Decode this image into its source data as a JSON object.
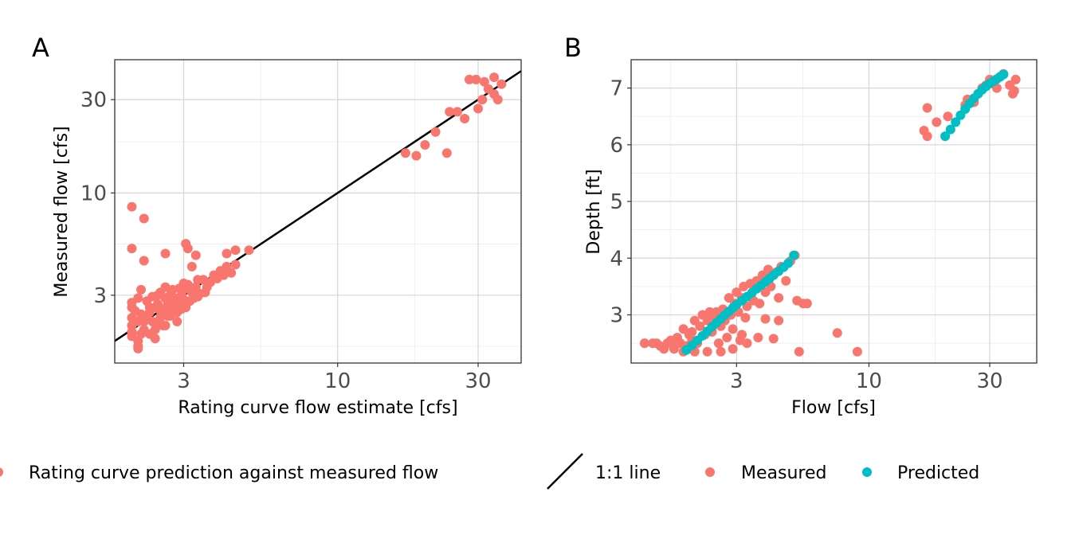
{
  "colors": {
    "measured": "#F8766D",
    "predicted": "#00BFC4",
    "line": "#000000"
  },
  "chart_data": [
    {
      "id": "A",
      "panel_label": "A",
      "type": "scatter",
      "xlabel": "Rating curve flow estimate [cfs]",
      "ylabel": "Measured flow [cfs]",
      "xscale": "log",
      "yscale": "log",
      "xlim": [
        1.75,
        42
      ],
      "ylim": [
        1.35,
        48
      ],
      "xticks": [
        3,
        10,
        30
      ],
      "yticks": [
        3,
        10,
        30
      ],
      "xticklabels": [
        "3",
        "10",
        "30"
      ],
      "yticklabels": [
        "3",
        "10",
        "30"
      ],
      "grid": true,
      "series": [
        {
          "name": "Rating curve prediction against measured flow",
          "color": "#F8766D",
          "points": [
            [
              2.0,
              8.5
            ],
            [
              2.0,
              5.2
            ],
            [
              2.2,
              7.4
            ],
            [
              2.2,
              4.5
            ],
            [
              2.6,
              4.9
            ],
            [
              3.05,
              5.5
            ],
            [
              3.1,
              5.2
            ],
            [
              3.3,
              4.8
            ],
            [
              4.2,
              4.9
            ],
            [
              4.5,
              5.1
            ],
            [
              5.0,
              5.1
            ],
            [
              2.0,
              2.6
            ],
            [
              2.0,
              2.3
            ],
            [
              2.0,
              2.1
            ],
            [
              2.0,
              1.95
            ],
            [
              2.0,
              1.85
            ],
            [
              2.1,
              1.75
            ],
            [
              2.1,
              1.65
            ],
            [
              2.1,
              1.6
            ],
            [
              2.15,
              2.4
            ],
            [
              2.15,
              3.2
            ],
            [
              2.1,
              2.9
            ],
            [
              2.2,
              2.2
            ],
            [
              2.2,
              2.0
            ],
            [
              2.25,
              2.8
            ],
            [
              2.3,
              2.6
            ],
            [
              2.3,
              2.45
            ],
            [
              2.35,
              2.2
            ],
            [
              2.4,
              2.0
            ],
            [
              2.4,
              1.8
            ],
            [
              2.45,
              3.0
            ],
            [
              2.45,
              2.7
            ],
            [
              2.5,
              2.5
            ],
            [
              2.5,
              2.3
            ],
            [
              2.55,
              2.1
            ],
            [
              2.6,
              3.3
            ],
            [
              2.6,
              2.9
            ],
            [
              2.65,
              2.7
            ],
            [
              2.7,
              2.5
            ],
            [
              2.7,
              2.35
            ],
            [
              2.75,
              3.2
            ],
            [
              2.8,
              2.9
            ],
            [
              2.8,
              2.6
            ],
            [
              2.85,
              2.45
            ],
            [
              2.9,
              2.7
            ],
            [
              2.95,
              3.0
            ],
            [
              3.0,
              3.2
            ],
            [
              3.0,
              2.85
            ],
            [
              3.05,
              2.6
            ],
            [
              3.1,
              3.4
            ],
            [
              3.2,
              3.1
            ],
            [
              3.25,
              2.9
            ],
            [
              3.3,
              3.3
            ],
            [
              3.4,
              3.05
            ],
            [
              3.5,
              3.6
            ],
            [
              3.6,
              3.3
            ],
            [
              3.7,
              3.5
            ],
            [
              3.8,
              3.8
            ],
            [
              3.9,
              3.65
            ],
            [
              4.0,
              4.0
            ],
            [
              4.1,
              3.8
            ],
            [
              4.2,
              4.2
            ],
            [
              4.35,
              3.9
            ],
            [
              4.5,
              4.3
            ],
            [
              2.3,
              1.9
            ],
            [
              2.25,
              2.3
            ],
            [
              2.4,
              2.6
            ],
            [
              2.55,
              2.55
            ],
            [
              2.65,
              2.35
            ],
            [
              2.75,
              2.8
            ],
            [
              2.95,
              2.55
            ],
            [
              3.15,
              2.8
            ],
            [
              3.35,
              2.95
            ],
            [
              2.0,
              2.75
            ],
            [
              2.05,
              2.5
            ],
            [
              2.1,
              2.2
            ],
            [
              2.35,
              2.95
            ],
            [
              2.5,
              3.1
            ],
            [
              2.6,
              2.1
            ],
            [
              2.85,
              2.2
            ],
            [
              3.0,
              3.45
            ],
            [
              3.2,
              4.2
            ],
            [
              3.35,
              3.6
            ],
            [
              3.55,
              3.1
            ],
            [
              2.15,
              1.9
            ],
            [
              2.45,
              2.15
            ],
            [
              2.7,
              3.0
            ],
            [
              2.9,
              3.25
            ],
            [
              17,
              16
            ],
            [
              18.5,
              15.5
            ],
            [
              19.8,
              17.6
            ],
            [
              21.5,
              20.5
            ],
            [
              23.5,
              16.0
            ],
            [
              24,
              26
            ],
            [
              25.5,
              26
            ],
            [
              27,
              24
            ],
            [
              28,
              38
            ],
            [
              29.5,
              38
            ],
            [
              30,
              27
            ],
            [
              31,
              30
            ],
            [
              31.5,
              37
            ],
            [
              32.5,
              34
            ],
            [
              34,
              32
            ],
            [
              34,
              39
            ],
            [
              35,
              30
            ],
            [
              36,
              36
            ]
          ]
        }
      ],
      "reference_line": {
        "name": "1:1 line",
        "slope": 1,
        "intercept": 0
      }
    },
    {
      "id": "B",
      "panel_label": "B",
      "type": "scatter",
      "xlabel": "Flow [cfs]",
      "ylabel": "Depth [ft]",
      "xscale": "log",
      "yscale": "linear",
      "xlim": [
        1.15,
        46
      ],
      "ylim": [
        2.15,
        7.5
      ],
      "xticks": [
        3,
        10,
        30
      ],
      "yticks": [
        3,
        4,
        5,
        6,
        7
      ],
      "xticklabels": [
        "3",
        "10",
        "30"
      ],
      "yticklabels": [
        "3",
        "4",
        "5",
        "6",
        "7"
      ],
      "grid": true,
      "series": [
        {
          "name": "Measured",
          "color": "#F8766D",
          "points": [
            [
              1.3,
              2.5
            ],
            [
              1.4,
              2.5
            ],
            [
              1.45,
              2.5
            ],
            [
              1.5,
              2.45
            ],
            [
              1.55,
              2.4
            ],
            [
              1.6,
              2.5
            ],
            [
              1.65,
              2.55
            ],
            [
              1.7,
              2.45
            ],
            [
              1.75,
              2.6
            ],
            [
              1.8,
              2.5
            ],
            [
              1.85,
              2.75
            ],
            [
              1.9,
              2.45
            ],
            [
              1.95,
              2.65
            ],
            [
              2.0,
              2.55
            ],
            [
              2.0,
              2.7
            ],
            [
              2.05,
              2.9
            ],
            [
              2.1,
              2.5
            ],
            [
              2.15,
              2.8
            ],
            [
              2.2,
              3.0
            ],
            [
              2.25,
              2.65
            ],
            [
              2.3,
              2.9
            ],
            [
              2.35,
              3.05
            ],
            [
              2.4,
              2.7
            ],
            [
              2.45,
              2.95
            ],
            [
              2.5,
              3.05
            ],
            [
              2.55,
              2.5
            ],
            [
              2.6,
              2.8
            ],
            [
              2.65,
              3.1
            ],
            [
              2.7,
              2.9
            ],
            [
              2.75,
              2.6
            ],
            [
              2.8,
              3.3
            ],
            [
              2.85,
              3.0
            ],
            [
              2.9,
              2.75
            ],
            [
              2.95,
              3.2
            ],
            [
              3.0,
              3.4
            ],
            [
              3.05,
              3.05
            ],
            [
              3.1,
              2.55
            ],
            [
              3.15,
              3.3
            ],
            [
              3.2,
              3.5
            ],
            [
              3.25,
              2.95
            ],
            [
              3.3,
              3.15
            ],
            [
              3.4,
              3.55
            ],
            [
              3.5,
              3.25
            ],
            [
              3.6,
              3.6
            ],
            [
              3.7,
              3.2
            ],
            [
              3.8,
              3.7
            ],
            [
              3.9,
              3.4
            ],
            [
              4.0,
              3.8
            ],
            [
              4.1,
              3.5
            ],
            [
              4.3,
              3.75
            ],
            [
              4.5,
              3.85
            ],
            [
              4.7,
              3.6
            ],
            [
              4.9,
              3.95
            ],
            [
              5.1,
              4.05
            ],
            [
              5.2,
              3.25
            ],
            [
              5.3,
              2.35
            ],
            [
              5.5,
              3.2
            ],
            [
              5.7,
              3.2
            ],
            [
              7.5,
              2.68
            ],
            [
              9.0,
              2.35
            ],
            [
              4.2,
              2.58
            ],
            [
              4.4,
              2.9
            ],
            [
              4.4,
              3.3
            ],
            [
              3.9,
              2.93
            ],
            [
              3.65,
              2.6
            ],
            [
              3.3,
              2.5
            ],
            [
              3.15,
              2.65
            ],
            [
              2.9,
              2.4
            ],
            [
              2.6,
              2.35
            ],
            [
              2.3,
              2.35
            ],
            [
              2.05,
              2.35
            ],
            [
              1.85,
              2.35
            ],
            [
              1.7,
              2.4
            ],
            [
              16.5,
              6.25
            ],
            [
              17,
              6.65
            ],
            [
              17,
              6.15
            ],
            [
              18.5,
              6.4
            ],
            [
              20.5,
              6.5
            ],
            [
              24,
              6.7
            ],
            [
              24.5,
              6.8
            ],
            [
              26,
              6.75
            ],
            [
              27,
              6.9
            ],
            [
              28,
              7.0
            ],
            [
              29,
              7.05
            ],
            [
              30,
              7.15
            ],
            [
              31,
              7.1
            ],
            [
              32,
              7.0
            ],
            [
              33,
              7.2
            ],
            [
              34,
              7.25
            ],
            [
              36,
              7.05
            ],
            [
              37,
              6.9
            ],
            [
              37.5,
              6.95
            ],
            [
              38,
              7.15
            ]
          ]
        },
        {
          "name": "Predicted",
          "color": "#00BFC4",
          "points": [
            [
              1.9,
              2.38
            ],
            [
              2.0,
              2.46
            ],
            [
              2.1,
              2.55
            ],
            [
              2.2,
              2.63
            ],
            [
              2.3,
              2.71
            ],
            [
              2.4,
              2.79
            ],
            [
              2.5,
              2.86
            ],
            [
              2.6,
              2.93
            ],
            [
              2.7,
              3.0
            ],
            [
              2.8,
              3.06
            ],
            [
              2.9,
              3.12
            ],
            [
              3.0,
              3.18
            ],
            [
              3.15,
              3.25
            ],
            [
              3.3,
              3.32
            ],
            [
              3.45,
              3.39
            ],
            [
              3.6,
              3.46
            ],
            [
              3.75,
              3.52
            ],
            [
              3.9,
              3.58
            ],
            [
              4.05,
              3.64
            ],
            [
              4.2,
              3.7
            ],
            [
              4.4,
              3.77
            ],
            [
              4.6,
              3.84
            ],
            [
              4.8,
              3.91
            ],
            [
              5.05,
              4.05
            ],
            [
              20,
              6.15
            ],
            [
              21,
              6.27
            ],
            [
              22,
              6.4
            ],
            [
              23,
              6.52
            ],
            [
              24,
              6.63
            ],
            [
              25,
              6.73
            ],
            [
              26,
              6.82
            ],
            [
              27,
              6.9
            ],
            [
              28,
              6.97
            ],
            [
              29,
              7.03
            ],
            [
              30,
              7.08
            ],
            [
              31,
              7.12
            ],
            [
              32,
              7.16
            ],
            [
              33,
              7.2
            ],
            [
              34,
              7.24
            ]
          ]
        }
      ]
    }
  ],
  "legends": {
    "left": {
      "item": "Rating curve prediction against measured flow"
    },
    "right": {
      "line": "1:1 line",
      "measured": "Measured",
      "predicted": "Predicted"
    }
  }
}
